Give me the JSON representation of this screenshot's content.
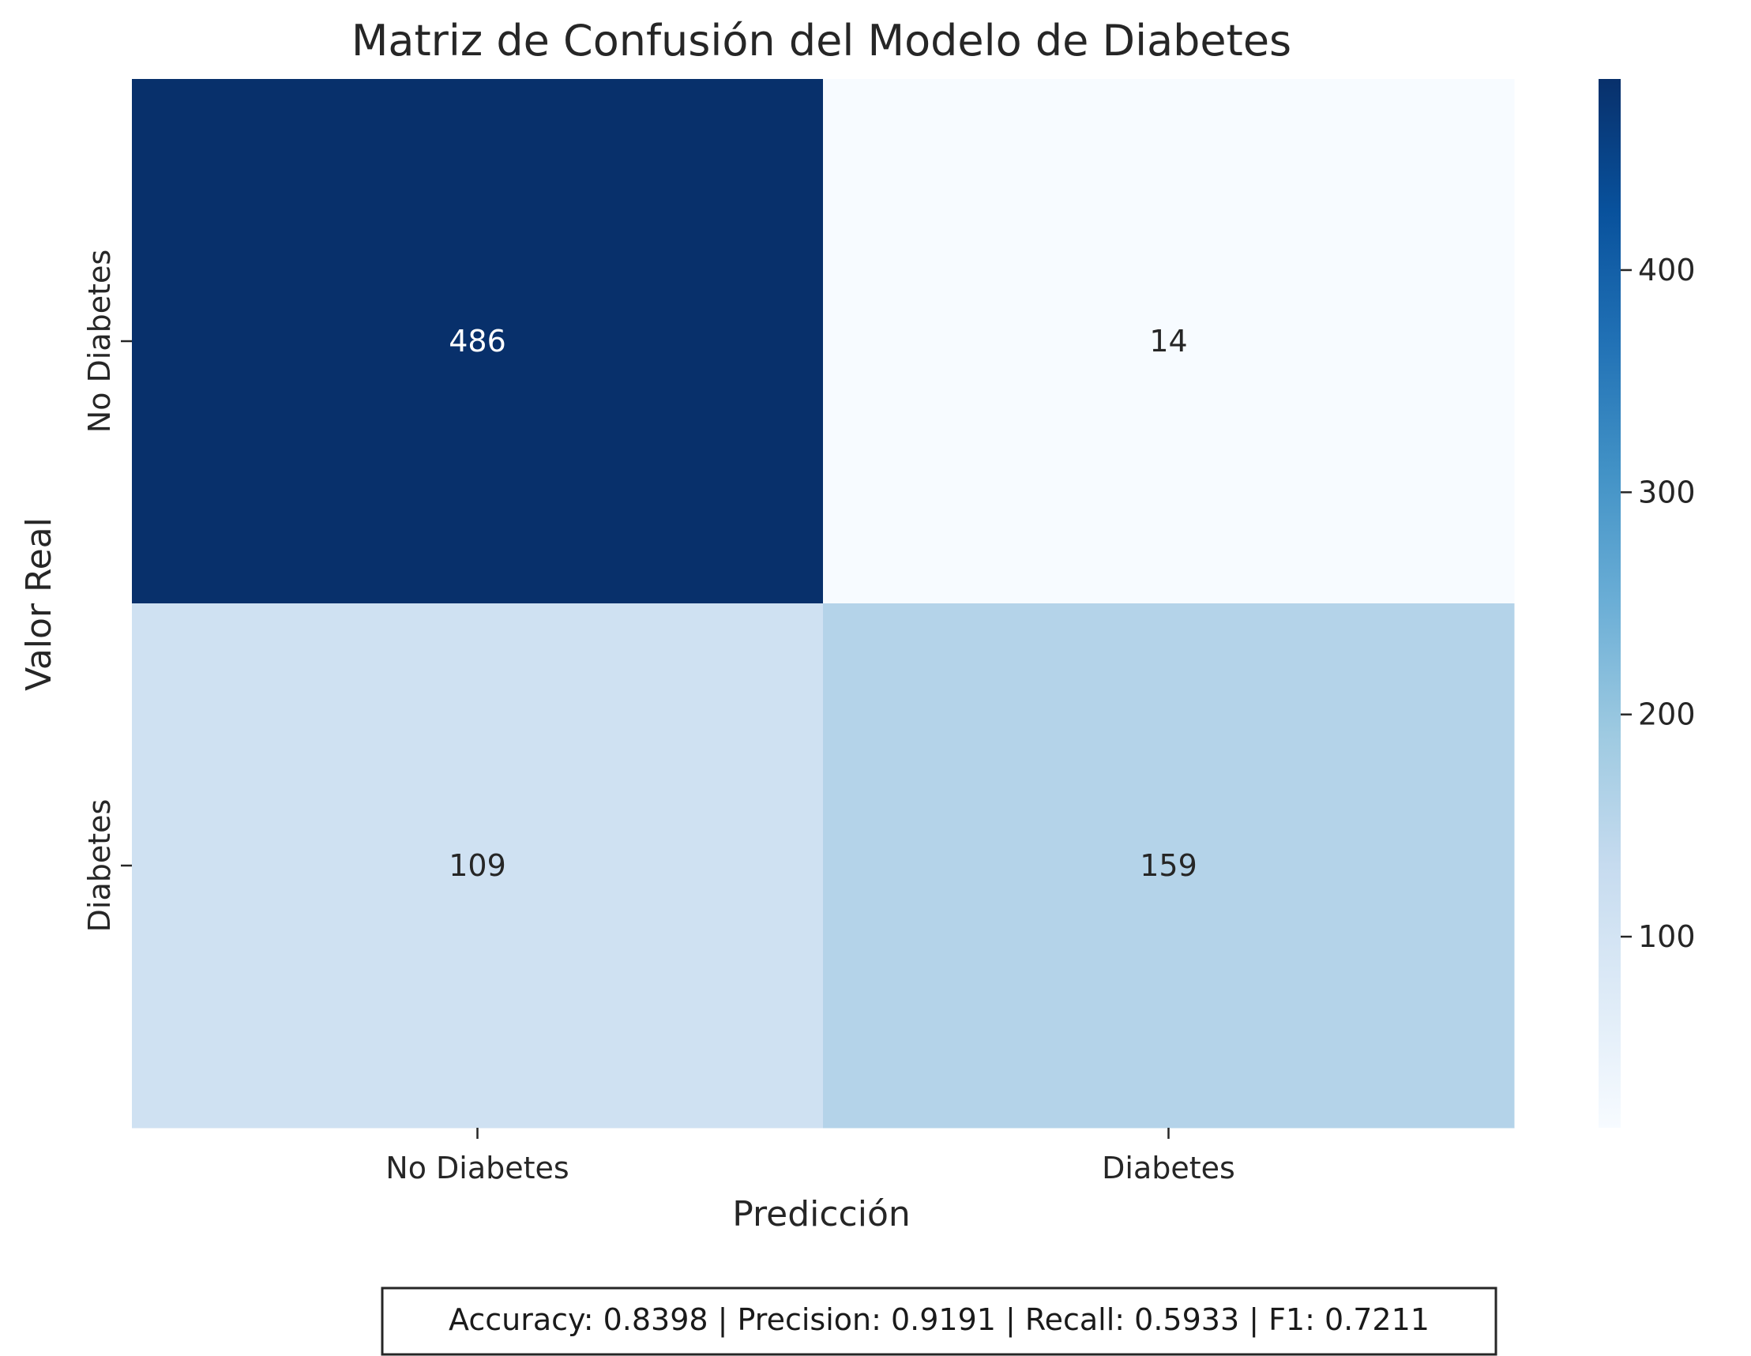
{
  "chart_data": {
    "type": "heatmap",
    "title": "Matriz de Confusión del Modelo de Diabetes",
    "xlabel": "Predicción",
    "ylabel": "Valor Real",
    "x_categories": [
      "No Diabetes",
      "Diabetes"
    ],
    "y_categories": [
      "No Diabetes",
      "Diabetes"
    ],
    "values": [
      [
        486,
        14
      ],
      [
        109,
        159
      ]
    ],
    "colormap": "Blues",
    "color_range": [
      14,
      486
    ],
    "colorbar_ticks": [
      100,
      200,
      300,
      400
    ],
    "colorbar_tick_labels": [
      "100",
      "200",
      "300",
      "400"
    ],
    "metrics_text": "Accuracy: 0.8398 | Precision: 0.9191 | Recall: 0.5933 | F1: 0.7211",
    "text_color_dark": "#262626",
    "text_color_light": "#ffffff"
  }
}
